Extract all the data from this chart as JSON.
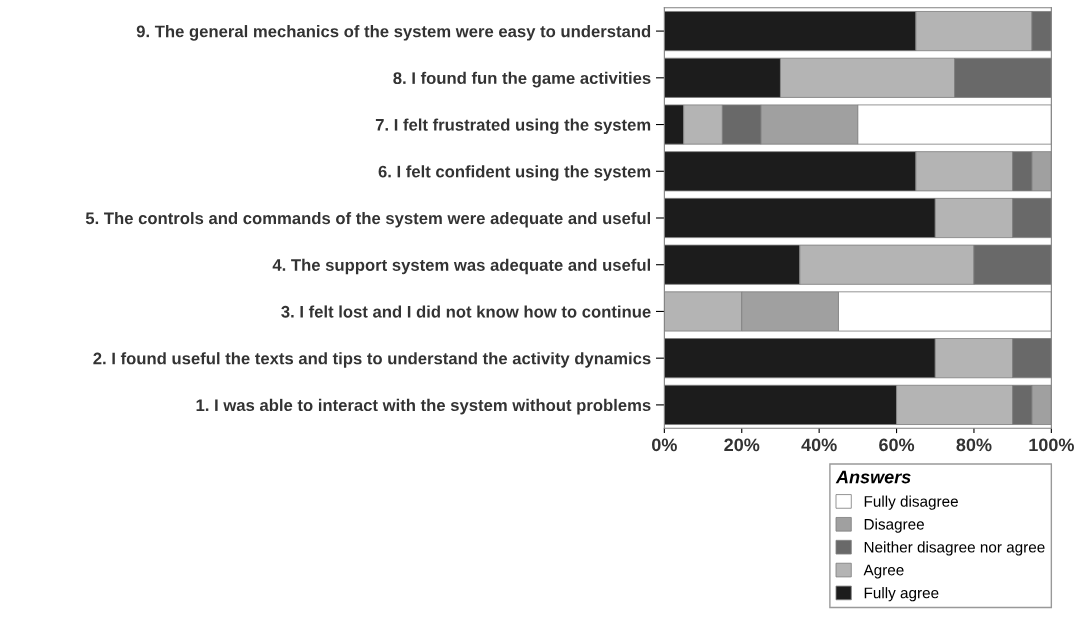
{
  "chart_data": {
    "type": "bar",
    "orientation": "horizontal",
    "stacked": true,
    "categories": [
      "9. The general mechanics of the system were easy to understand",
      "8. I found fun the game activities",
      "7. I felt frustrated using the system",
      "6. I felt confident using the system",
      "5. The controls and commands of the system were adequate and useful",
      "4. The support system was adequate and useful",
      "3. I felt lost and I did not know how to continue",
      "2. I found useful the texts and tips to understand the activity dynamics",
      "1. I was able to interact with the system without problems"
    ],
    "series": [
      {
        "name": "Fully agree",
        "color": "#1c1c1c",
        "values": [
          65,
          30,
          5,
          65,
          70,
          35,
          0,
          70,
          60
        ]
      },
      {
        "name": "Agree",
        "color": "#b4b4b4",
        "values": [
          30,
          45,
          10,
          25,
          20,
          45,
          20,
          20,
          30
        ]
      },
      {
        "name": "Neither disagree nor agree",
        "color": "#696969",
        "values": [
          5,
          25,
          10,
          5,
          10,
          20,
          0,
          10,
          5
        ]
      },
      {
        "name": "Disagree",
        "color": "#a0a0a0",
        "values": [
          0,
          0,
          25,
          5,
          0,
          0,
          25,
          0,
          5
        ]
      },
      {
        "name": "Fully disagree",
        "color": "#ffffff",
        "values": [
          0,
          0,
          50,
          0,
          0,
          0,
          55,
          0,
          0
        ]
      }
    ],
    "xlim": [
      0,
      100
    ],
    "xticks": [
      {
        "value": 0,
        "label": "0%"
      },
      {
        "value": 20,
        "label": "20%"
      },
      {
        "value": 40,
        "label": "40%"
      },
      {
        "value": 60,
        "label": "60%"
      },
      {
        "value": 80,
        "label": "80%"
      },
      {
        "value": 100,
        "label": "100%"
      }
    ],
    "legend_title": "Answers",
    "legend": "bottom right",
    "grid": false
  }
}
